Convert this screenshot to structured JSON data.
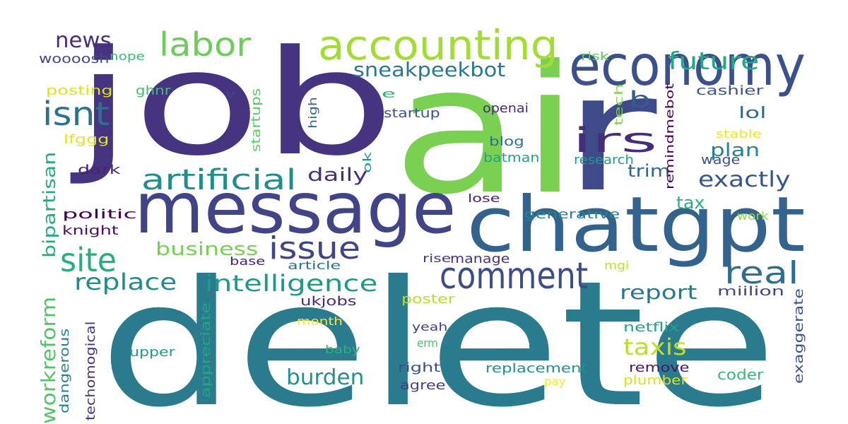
{
  "words": [
    {
      "text": "delete",
      "color": "#2a7b8e"
    },
    {
      "text": "job",
      "color": "#463480"
    },
    {
      "text": "ai",
      "color": "#7ad151"
    },
    {
      "text": "r",
      "color": "#3f4a8a"
    },
    {
      "text": "message",
      "color": "#414487"
    },
    {
      "text": "chatgpt",
      "color": "#33638d"
    },
    {
      "text": "economy",
      "color": "#3b518b"
    },
    {
      "text": "accounting",
      "color": "#a5db36"
    },
    {
      "text": "labor",
      "color": "#6ccd5a"
    },
    {
      "text": "future",
      "color": "#22a884"
    },
    {
      "text": "comment",
      "color": "#3e4c8a"
    },
    {
      "text": "irs",
      "color": "#472c7a"
    },
    {
      "text": "issue",
      "color": "#404588"
    },
    {
      "text": "isnt",
      "color": "#2c728e"
    },
    {
      "text": "site",
      "color": "#26ad81"
    },
    {
      "text": "artificial",
      "color": "#228d8d"
    },
    {
      "text": "intelligence",
      "color": "#1f9a8a"
    },
    {
      "text": "real",
      "color": "#2e6e8e"
    },
    {
      "text": "news",
      "color": "#472d7b"
    },
    {
      "text": "sneakpeekbot",
      "color": "#2a788e"
    },
    {
      "text": "b",
      "color": "#365c8d"
    },
    {
      "text": "replace",
      "color": "#238a8d"
    },
    {
      "text": "workreform",
      "color": "#52c569"
    },
    {
      "text": "bipartisan",
      "color": "#25ab82"
    },
    {
      "text": "daily",
      "color": "#472f7d"
    },
    {
      "text": "plan",
      "color": "#25838e"
    },
    {
      "text": "exactly",
      "color": "#39568c"
    },
    {
      "text": "lol",
      "color": "#2f6b8e"
    },
    {
      "text": "trim",
      "color": "#31688e"
    },
    {
      "text": "business",
      "color": "#75d054"
    },
    {
      "text": "report",
      "color": "#2a768e"
    },
    {
      "text": "taxis",
      "color": "#bddf26"
    },
    {
      "text": "burden",
      "color": "#20928c"
    },
    {
      "text": "tax",
      "color": "#29af7f"
    },
    {
      "text": "woooosh",
      "color": "#3e4a89"
    },
    {
      "text": "nope",
      "color": "#3bbb75"
    },
    {
      "text": "posting",
      "color": "#dde318"
    },
    {
      "text": "ghnr",
      "color": "#40bd72"
    },
    {
      "text": "lfggg",
      "color": "#e5e419"
    },
    {
      "text": "dark",
      "color": "#482475"
    },
    {
      "text": "politic",
      "color": "#440154"
    },
    {
      "text": "knight",
      "color": "#471063"
    },
    {
      "text": "dangerous",
      "color": "#287d8e"
    },
    {
      "text": "techomogical",
      "color": "#46337f"
    },
    {
      "text": "upper",
      "color": "#1fa187"
    },
    {
      "text": "appreciate",
      "color": "#21a685"
    },
    {
      "text": "baby",
      "color": "#2db27d"
    },
    {
      "text": "month",
      "color": "#fde725"
    },
    {
      "text": "ukjobs",
      "color": "#482878"
    },
    {
      "text": "base",
      "color": "#482173"
    },
    {
      "text": "article",
      "color": "#2e6f8e"
    },
    {
      "text": "poster",
      "color": "#b5de2b"
    },
    {
      "text": "erm",
      "color": "#4ac16d"
    },
    {
      "text": "right",
      "color": "#3d4e8a"
    },
    {
      "text": "agree",
      "color": "#433e85"
    },
    {
      "text": "yeah",
      "color": "#424186"
    },
    {
      "text": "rise",
      "color": "#453882"
    },
    {
      "text": "manage",
      "color": "#46317e"
    },
    {
      "text": "lose",
      "color": "#481b6d"
    },
    {
      "text": "generative",
      "color": "#24868e"
    },
    {
      "text": "mgi",
      "color": "#c0df25"
    },
    {
      "text": "replacement",
      "color": "#21908d"
    },
    {
      "text": "pay",
      "color": "#fbe723"
    },
    {
      "text": "remove",
      "color": "#481467"
    },
    {
      "text": "plumber",
      "color": "#dae319"
    },
    {
      "text": "coder",
      "color": "#35b779"
    },
    {
      "text": "exaggerate",
      "color": "#3a538b"
    },
    {
      "text": "netflix",
      "color": "#20a386"
    },
    {
      "text": "miilion",
      "color": "#404688"
    },
    {
      "text": "work",
      "color": "#93d741"
    },
    {
      "text": "stable",
      "color": "#f1e51d"
    },
    {
      "text": "remindmebot",
      "color": "#440154"
    },
    {
      "text": "research",
      "color": "#1e9c89"
    },
    {
      "text": "wage",
      "color": "#3c4f8a"
    },
    {
      "text": "tech",
      "color": "#84d44b"
    },
    {
      "text": "cashier",
      "color": "#3b528b"
    },
    {
      "text": "risk",
      "color": "#5ec962"
    },
    {
      "text": "e",
      "color": "#2ab07f"
    },
    {
      "text": "startup",
      "color": "#3a548c"
    },
    {
      "text": "openai",
      "color": "#472a7a"
    },
    {
      "text": "ok",
      "color": "#1f958b"
    },
    {
      "text": "high",
      "color": "#31688e"
    },
    {
      "text": "startups",
      "color": "#5cc863"
    },
    {
      "text": "v",
      "color": "#3f4788"
    },
    {
      "text": "blog",
      "color": "#2c728e"
    },
    {
      "text": "batman",
      "color": "#1fa188"
    }
  ]
}
